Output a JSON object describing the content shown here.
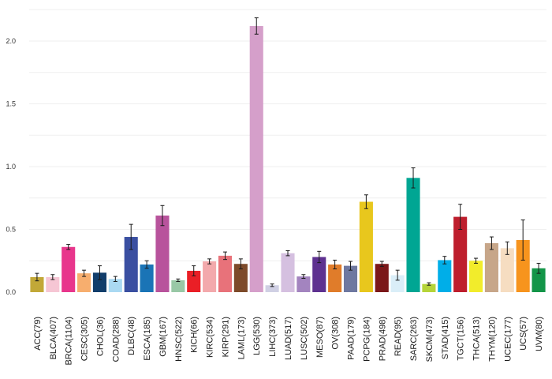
{
  "chart_data": {
    "type": "bar",
    "title": "",
    "xlabel": "",
    "ylabel": "",
    "ylim": [
      0,
      2.3
    ],
    "y_ticks": [
      0.0,
      0.5,
      1.0,
      1.5,
      2.0
    ],
    "y_tick_labels": [
      "0.0",
      "0.5",
      "1.0",
      "1.5",
      "2.0"
    ],
    "grid": "horizontal",
    "legend": "none",
    "error_bars": true,
    "categories": [
      "ACC(79)",
      "BLCA(407)",
      "BRCA(1104)",
      "CESC(305)",
      "CHOL(36)",
      "COAD(288)",
      "DLBC(48)",
      "ESCA(185)",
      "GBM(167)",
      "HNSC(522)",
      "KICH(66)",
      "KIRC(534)",
      "KIRP(291)",
      "LAML(173)",
      "LGG(530)",
      "LIHC(373)",
      "LUAD(517)",
      "LUSC(502)",
      "MESO(87)",
      "OV(308)",
      "PAAD(179)",
      "PCPG(184)",
      "PRAD(498)",
      "READ(95)",
      "SARC(263)",
      "SKCM(473)",
      "STAD(415)",
      "TGCT(156)",
      "THCA(513)",
      "THYM(120)",
      "UCEC(177)",
      "UCS(57)",
      "UVM(80)"
    ],
    "values": [
      0.12,
      0.12,
      0.36,
      0.15,
      0.155,
      0.105,
      0.44,
      0.22,
      0.61,
      0.095,
      0.17,
      0.245,
      0.29,
      0.225,
      2.12,
      0.055,
      0.31,
      0.125,
      0.28,
      0.22,
      0.21,
      0.72,
      0.225,
      0.135,
      0.91,
      0.065,
      0.255,
      0.6,
      0.25,
      0.39,
      0.35,
      0.415,
      0.19
    ],
    "errors": [
      0.03,
      0.02,
      0.02,
      0.025,
      0.055,
      0.02,
      0.1,
      0.03,
      0.08,
      0.01,
      0.04,
      0.02,
      0.03,
      0.04,
      0.065,
      0.01,
      0.02,
      0.015,
      0.045,
      0.035,
      0.035,
      0.055,
      0.02,
      0.04,
      0.08,
      0.01,
      0.03,
      0.1,
      0.02,
      0.05,
      0.05,
      0.16,
      0.04
    ],
    "colors": [
      "#c2a838",
      "#f6c6d4",
      "#e8368c",
      "#f7ae6e",
      "#123e6b",
      "#aad9f2",
      "#3a4fa1",
      "#1a74b6",
      "#b8539c",
      "#99c8a6",
      "#ea1f26",
      "#f3a9ac",
      "#e8727a",
      "#7d4a2a",
      "#d59fca",
      "#d0d0e4",
      "#d5c0e0",
      "#a384bf",
      "#5e3190",
      "#e07c2a",
      "#6e78a0",
      "#e8c71d",
      "#7b1719",
      "#daeef8",
      "#00a693",
      "#b5d439",
      "#00aee8",
      "#be1e2d",
      "#f2ec2b",
      "#c7a689",
      "#f6ddc1",
      "#f7941d",
      "#139548"
    ]
  }
}
